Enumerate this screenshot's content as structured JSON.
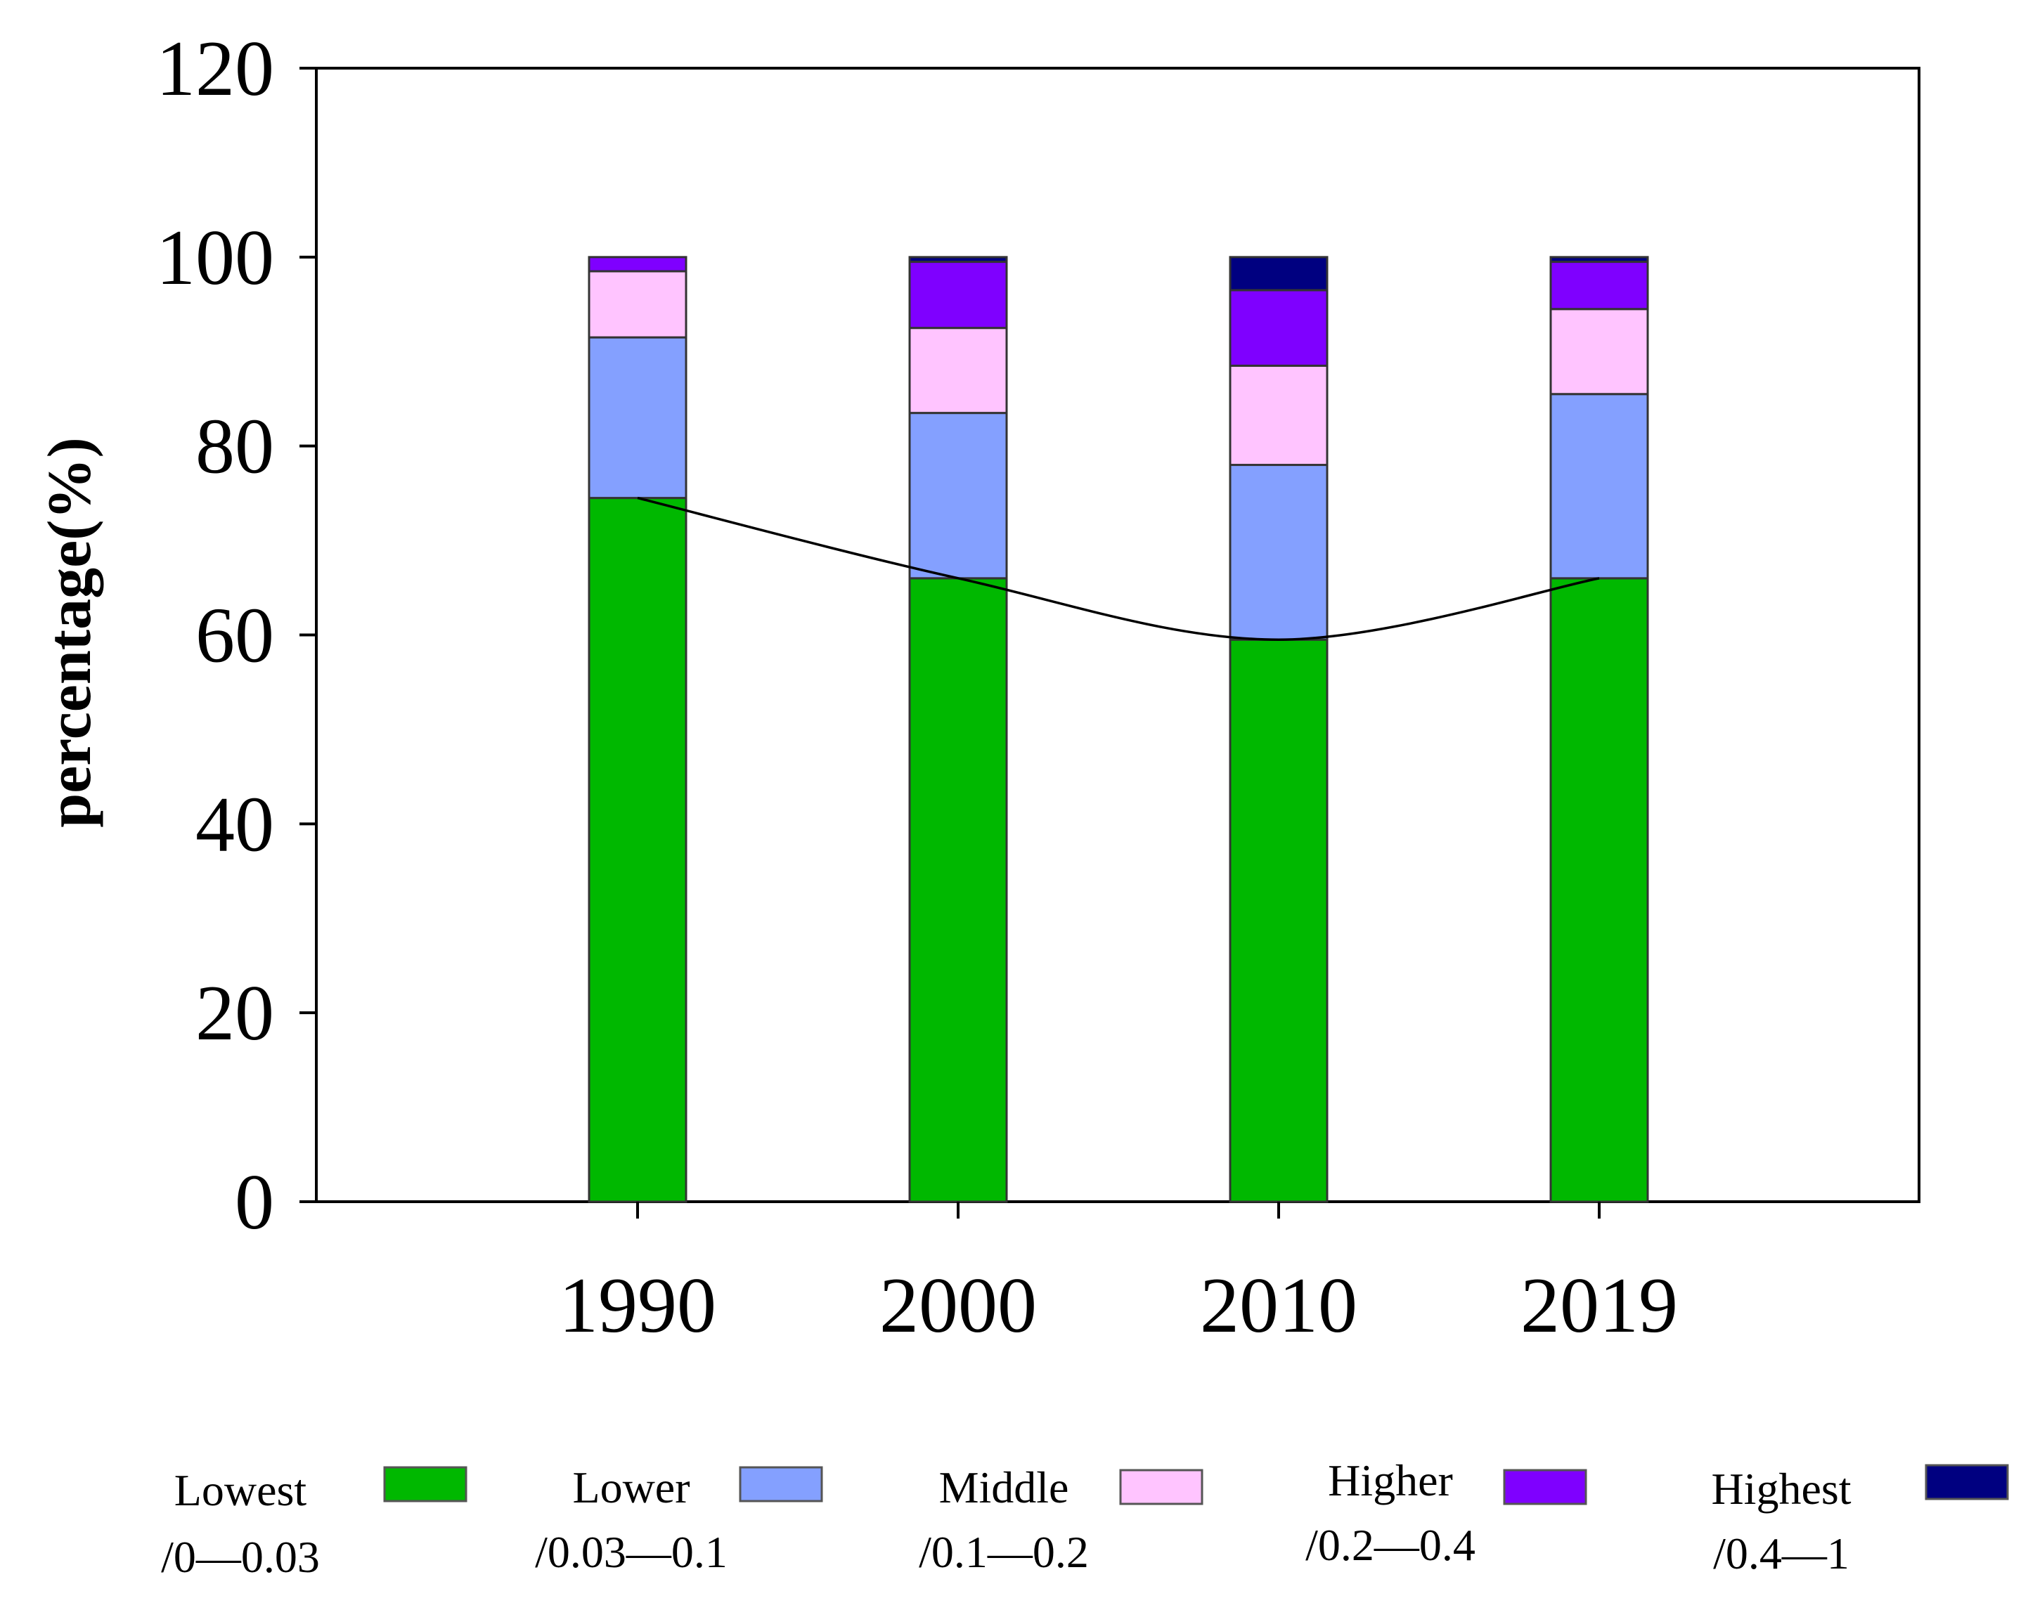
{
  "chart_data": {
    "type": "bar",
    "stacked": true,
    "title": "",
    "xlabel": "",
    "ylabel": "percentage(%)",
    "ylim": [
      0,
      120
    ],
    "yticks": [
      0,
      20,
      40,
      60,
      80,
      100,
      120
    ],
    "categories": [
      "1990",
      "2000",
      "2010",
      "2019"
    ],
    "series": [
      {
        "name": "Lowest",
        "range": "/0—0.03",
        "color": "#00b800",
        "values": [
          74.5,
          66.0,
          59.5,
          66.0
        ]
      },
      {
        "name": "Lower",
        "range": "/0.03—0.1",
        "color": "#84a0ff",
        "values": [
          17.0,
          17.5,
          18.5,
          19.5
        ]
      },
      {
        "name": "Middle",
        "range": "/0.1—0.2",
        "color": "#ffc4ff",
        "values": [
          7.0,
          9.0,
          10.5,
          9.0
        ]
      },
      {
        "name": "Higher",
        "range": "/0.2—0.4",
        "color": "#7f00ff",
        "values": [
          1.5,
          7.0,
          8.0,
          5.0
        ]
      },
      {
        "name": "Highest",
        "range": "/0.4—1",
        "color": "#000080",
        "values": [
          0.0,
          0.5,
          3.5,
          0.5
        ]
      }
    ],
    "trend_line": {
      "series": "Lowest",
      "values": [
        74.5,
        66.0,
        59.5,
        66.0
      ]
    },
    "grid": false,
    "legend_position": "bottom"
  }
}
